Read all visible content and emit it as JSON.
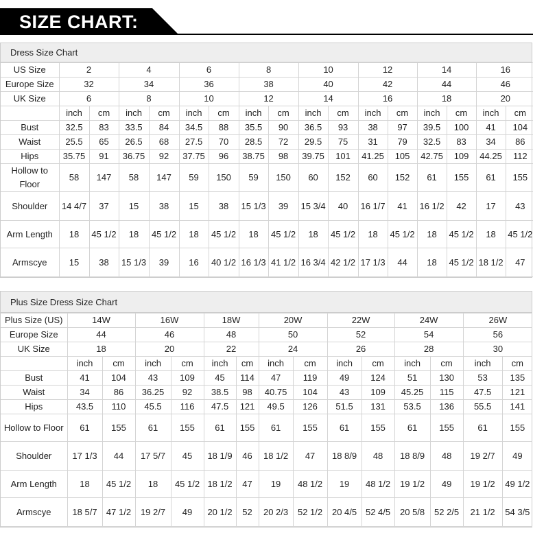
{
  "header": {
    "title": "SIZE CHART:"
  },
  "tables": [
    {
      "title": "Dress Size Chart",
      "size_rows": [
        {
          "label": "US Size",
          "values": [
            "2",
            "4",
            "6",
            "8",
            "10",
            "12",
            "14",
            "16"
          ]
        },
        {
          "label": "Europe Size",
          "values": [
            "32",
            "34",
            "36",
            "38",
            "40",
            "42",
            "44",
            "46"
          ]
        },
        {
          "label": "UK Size",
          "values": [
            "6",
            "8",
            "10",
            "12",
            "14",
            "16",
            "18",
            "20"
          ]
        }
      ],
      "units": [
        "inch",
        "cm",
        "inch",
        "cm",
        "inch",
        "cm",
        "inch",
        "cm",
        "inch",
        "cm",
        "inch",
        "cm",
        "inch",
        "cm",
        "inch",
        "cm"
      ],
      "measure_rows": [
        {
          "label": "Bust",
          "values": [
            "32.5",
            "83",
            "33.5",
            "84",
            "34.5",
            "88",
            "35.5",
            "90",
            "36.5",
            "93",
            "38",
            "97",
            "39.5",
            "100",
            "41",
            "104"
          ]
        },
        {
          "label": "Waist",
          "values": [
            "25.5",
            "65",
            "26.5",
            "68",
            "27.5",
            "70",
            "28.5",
            "72",
            "29.5",
            "75",
            "31",
            "79",
            "32.5",
            "83",
            "34",
            "86"
          ]
        },
        {
          "label": "Hips",
          "values": [
            "35.75",
            "91",
            "36.75",
            "92",
            "37.75",
            "96",
            "38.75",
            "98",
            "39.75",
            "101",
            "41.25",
            "105",
            "42.75",
            "109",
            "44.25",
            "112"
          ]
        },
        {
          "label": "Hollow to Floor",
          "values": [
            "58",
            "147",
            "58",
            "147",
            "59",
            "150",
            "59",
            "150",
            "60",
            "152",
            "60",
            "152",
            "61",
            "155",
            "61",
            "155"
          ]
        },
        {
          "label": "Shoulder",
          "values": [
            "14 4/7",
            "37",
            "15",
            "38",
            "15",
            "38",
            "15 1/3",
            "39",
            "15 3/4",
            "40",
            "16 1/7",
            "41",
            "16 1/2",
            "42",
            "17",
            "43"
          ]
        },
        {
          "label": "Arm Length",
          "values": [
            "18",
            "45 1/2",
            "18",
            "45 1/2",
            "18",
            "45 1/2",
            "18",
            "45 1/2",
            "18",
            "45 1/2",
            "18",
            "45 1/2",
            "18",
            "45 1/2",
            "18",
            "45 1/2"
          ]
        },
        {
          "label": "Armscye",
          "values": [
            "15",
            "38",
            "15 1/3",
            "39",
            "16",
            "40 1/2",
            "16 1/3",
            "41 1/2",
            "16 3/4",
            "42 1/2",
            "17 1/3",
            "44",
            "18",
            "45 1/2",
            "18 1/2",
            "47"
          ]
        }
      ]
    },
    {
      "title": "Plus Size Dress Size Chart",
      "size_rows": [
        {
          "label": "Plus Size (US)",
          "values": [
            "14W",
            "16W",
            "18W",
            "20W",
            "22W",
            "24W",
            "26W"
          ]
        },
        {
          "label": "Europe Size",
          "values": [
            "44",
            "46",
            "48",
            "50",
            "52",
            "54",
            "56"
          ]
        },
        {
          "label": "UK Size",
          "values": [
            "18",
            "20",
            "22",
            "24",
            "26",
            "28",
            "30"
          ]
        }
      ],
      "units": [
        "inch",
        "cm",
        "inch",
        "cm",
        "inch",
        "cm",
        "inch",
        "cm",
        "inch",
        "cm",
        "inch",
        "cm",
        "inch",
        "cm"
      ],
      "measure_rows": [
        {
          "label": "Bust",
          "values": [
            "41",
            "104",
            "43",
            "109",
            "45",
            "114",
            "47",
            "119",
            "49",
            "124",
            "51",
            "130",
            "53",
            "135"
          ]
        },
        {
          "label": "Waist",
          "values": [
            "34",
            "86",
            "36.25",
            "92",
            "38.5",
            "98",
            "40.75",
            "104",
            "43",
            "109",
            "45.25",
            "115",
            "47.5",
            "121"
          ]
        },
        {
          "label": "Hips",
          "values": [
            "43.5",
            "110",
            "45.5",
            "116",
            "47.5",
            "121",
            "49.5",
            "126",
            "51.5",
            "131",
            "53.5",
            "136",
            "55.5",
            "141"
          ]
        },
        {
          "label": "Hollow to Floor",
          "values": [
            "61",
            "155",
            "61",
            "155",
            "61",
            "155",
            "61",
            "155",
            "61",
            "155",
            "61",
            "155",
            "61",
            "155"
          ]
        },
        {
          "label": "Shoulder",
          "values": [
            "17 1/3",
            "44",
            "17 5/7",
            "45",
            "18 1/9",
            "46",
            "18 1/2",
            "47",
            "18 8/9",
            "48",
            "18 8/9",
            "48",
            "19 2/7",
            "49"
          ]
        },
        {
          "label": "Arm Length",
          "values": [
            "18",
            "45 1/2",
            "18",
            "45 1/2",
            "18 1/2",
            "47",
            "19",
            "48 1/2",
            "19",
            "48 1/2",
            "19 1/2",
            "49",
            "19 1/2",
            "49 1/2"
          ]
        },
        {
          "label": "Armscye",
          "values": [
            "18 5/7",
            "47 1/2",
            "19 2/7",
            "49",
            "20 1/2",
            "52",
            "20 2/3",
            "52 1/2",
            "20 4/5",
            "52 4/5",
            "20 5/8",
            "52 2/5",
            "21 1/2",
            "54 3/5"
          ]
        }
      ]
    }
  ]
}
